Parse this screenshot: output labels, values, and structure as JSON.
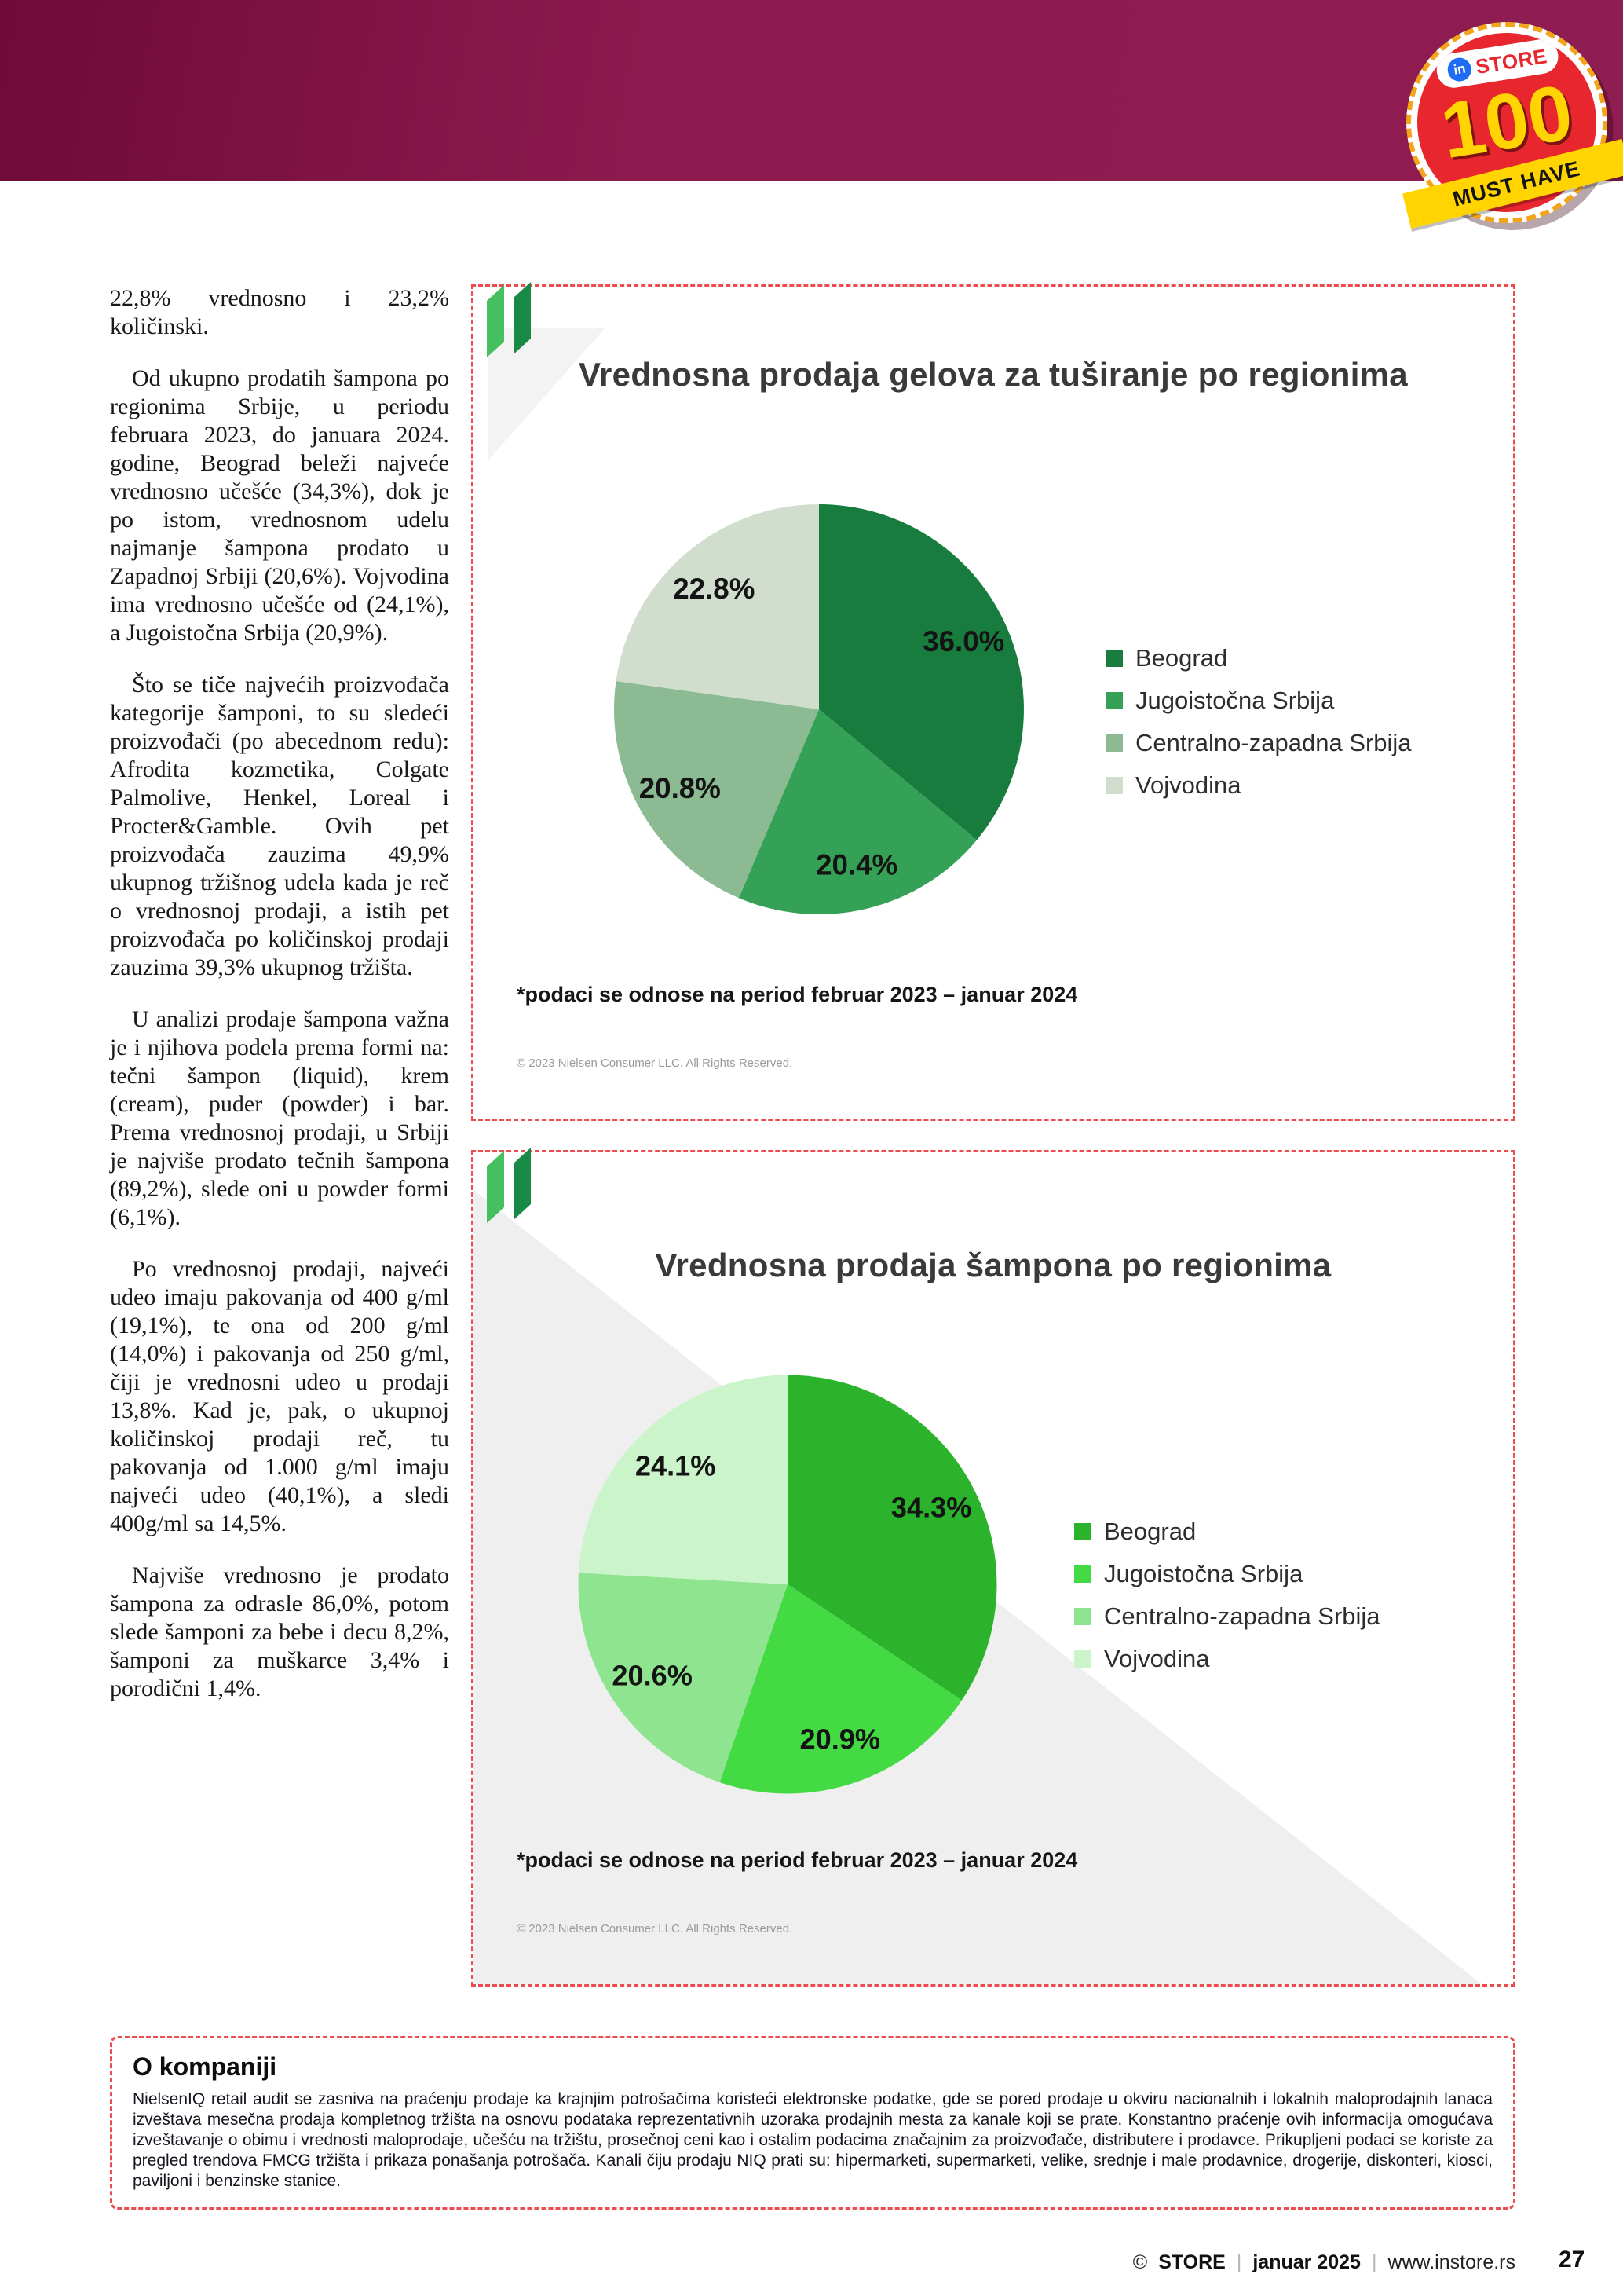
{
  "header": {
    "badge": {
      "in": "in",
      "store": "STORE",
      "number": "100",
      "ribbon": "MUST HAVE"
    }
  },
  "article": {
    "paragraphs": [
      "22,8% vrednosno i 23,2% količinski.",
      "Od ukupno prodatih šampona po regionima Srbije, u periodu februara 2023, do januara 2024. godine, Beograd beleži najveće vrednosno učešće (34,3%), dok je po istom, vrednosnom udelu najmanje šampona prodato u Zapadnoj Srbiji (20,6%). Vojvodina ima vrednosno učešće od (24,1%), a Jugoistočna Srbija (20,9%).",
      "Što se tiče najvećih proizvođača kategorije šamponi, to su sledeći proizvođači (po abecednom redu): Afrodita kozmetika, Colgate Palmolive, Henkel, Loreal i Procter&Gamble. Ovih pet proizvođača zauzima 49,9% ukupnog tržišnog udela kada je reč o vrednosnoj prodaji, a istih pet proizvođača po količinskoj prodaji zauzima 39,3% ukupnog tržišta.",
      "U analizi prodaje šampona važna je i njihova podela prema formi na: tečni šampon (liquid), krem (cream), puder (powder) i bar. Prema vrednosnoj prodaji, u Srbiji je najviše prodato tečnih šampona (89,2%), slede oni u powder formi (6,1%).",
      "Po vrednosnoj prodaji, najveći udeo imaju pakovanja od 400 g/ml (19,1%), te ona od 200 g/ml (14,0%) i pakovanja od 250 g/ml, čiji je vrednosni udeo u prodaji 13,8%. Kad je, pak, o ukupnoj količinskoj prodaji reč, tu pakovanja od 1.000 g/ml imaju najveći udeo (40,1%), a sledi 400g/ml sa 14,5%.",
      "Najviše vrednosno je prodato šampona za odrasle 86,0%, potom slede šamponi za bebe i decu 8,2%, šamponi za muškarce 3,4% i porodični 1,4%."
    ]
  },
  "chart_data": [
    {
      "type": "pie",
      "title": "Vrednosna prodaja gelova za tuširanje po regionima",
      "categories": [
        "Beograd",
        "Jugoistočna Srbija",
        "Centralno-zapadna Srbija",
        "Vojvodina"
      ],
      "values": [
        36.0,
        20.4,
        20.8,
        22.8
      ],
      "labels": [
        "36.0%",
        "20.4%",
        "20.8%",
        "22.8%"
      ],
      "colors": [
        "#177c3e",
        "#34a156",
        "#8cbb93",
        "#d2decd"
      ],
      "legend_position": "right",
      "start_angle": 0,
      "footnote": "*podaci se odnose na period februar 2023 – januar 2024",
      "copyright": "© 2023 Nielsen Consumer LLC. All Rights Reserved."
    },
    {
      "type": "pie",
      "title": "Vrednosna prodaja šampona po regionima",
      "categories": [
        "Beograd",
        "Jugoistočna Srbija",
        "Centralno-zapadna Srbija",
        "Vojvodina"
      ],
      "values": [
        34.3,
        20.9,
        20.6,
        24.1
      ],
      "labels": [
        "34.3%",
        "20.9%",
        "20.6%",
        "24.1%"
      ],
      "colors": [
        "#2cb32c",
        "#44da44",
        "#8fe48f",
        "#cbf4cb"
      ],
      "legend_position": "right",
      "start_angle": 0,
      "footnote": "*podaci se odnose na period februar 2023 – januar 2024",
      "copyright": "© 2023 Nielsen Consumer LLC. All Rights Reserved."
    }
  ],
  "about": {
    "title": "O kompaniji",
    "body": "NielsenIQ retail audit se zasniva na praćenju prodaje ka krajnjim potrošačima koristeći elektronske podatke, gde se pored prodaje u okviru nacionalnih i lokalnih maloprodajnih lanaca izveštava mesečna prodaja kompletnog tržišta na osnovu podataka reprezentativnih uzoraka prodajnih mesta za kanale koji se prate. Konstantno praćenje ovih informacija omogućava izveštavanje o obimu i vrednosti maloprodaje, učešću na tržištu, prosečnoj ceni kao i ostalim podacima značajnim za proizvođače, distributere i prodavce. Prikupljeni podaci se koriste za pregled trendova FMCG tržišta i prikaza ponašanja potrošača. Kanali čiju prodaju NIQ prati su: hipermarketi, supermarketi, velike, srednje i male prodavnice, drogerije, diskonteri, kiosci, paviljoni i benzinske stanice."
  },
  "footer": {
    "copyright_symbol": "©",
    "brand": "STORE",
    "issue": "januar 2025",
    "site": "www.instore.rs",
    "page_number": "27"
  }
}
